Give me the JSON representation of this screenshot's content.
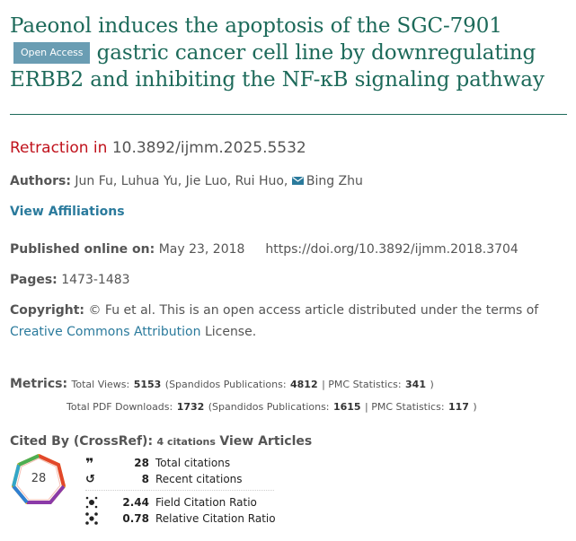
{
  "article": {
    "title": "Paeonol induces the apoptosis of the SGC-7901 gastric cancer cell line by downregulating ERBB2 and inhibiting the NF-κB signaling pathway",
    "title_part1": "Paeonol induces the apoptosis of the SGC-7901",
    "title_part2": "gastric cancer cell line by downregulating ERBB2 and inhibiting the NF-κB signaling pathway",
    "open_access_label": "Open Access"
  },
  "retraction": {
    "label": "Retraction in",
    "doi": "10.3892/ijmm.2025.5532"
  },
  "authors": {
    "label": "Authors:",
    "list": "Jun Fu, Luhua Yu, Jie Luo, Rui Huo,",
    "corresponding": "Bing Zhu"
  },
  "affiliations_link": "View Affiliations",
  "published": {
    "label": "Published online on:",
    "date": "May 23, 2018",
    "doi_url": "https://doi.org/10.3892/ijmm.2018.3704"
  },
  "pages": {
    "label": "Pages:",
    "value": "1473-1483"
  },
  "copyright": {
    "label": "Copyright:",
    "text": "© Fu et al. This is an open access article distributed under the terms of",
    "link": "Creative Commons Attribution",
    "suffix": "License."
  },
  "metrics": {
    "label": "Metrics:",
    "views_label": "Total Views:",
    "views": "5153",
    "views_spandidos_label": "(Spandidos Publications:",
    "views_spandidos": "4812",
    "views_pmc_label": "| PMC Statistics:",
    "views_pmc": "341",
    "views_close": ")",
    "pdf_label": "Total PDF Downloads:",
    "pdf": "1732",
    "pdf_spandidos_label": "(Spandidos Publications:",
    "pdf_spandidos": "1615",
    "pdf_pmc_label": "| PMC Statistics:",
    "pdf_pmc": "117",
    "pdf_close": ")"
  },
  "cited_by": {
    "label": "Cited By (CrossRef):",
    "count_text": "4 citations",
    "view_link": "View Articles"
  },
  "dimensions": {
    "badge_value": "28",
    "total_citations": "28",
    "total_citations_label": "Total citations",
    "recent_citations": "8",
    "recent_citations_label": "Recent citations",
    "field_ratio": "2.44",
    "field_ratio_label": "Field Citation Ratio",
    "relative_ratio": "0.78",
    "relative_ratio_label": "Relative Citation Ratio"
  },
  "colors": {
    "title": "#1d6a5a",
    "retraction": "#c0121c",
    "link": "#2a7a9c",
    "badge_bg": "#6a9db3"
  },
  "icons": [
    "envelope-icon",
    "quote-icon",
    "history-icon",
    "field-ratio-icon",
    "relative-ratio-icon",
    "dimensions-badge"
  ]
}
